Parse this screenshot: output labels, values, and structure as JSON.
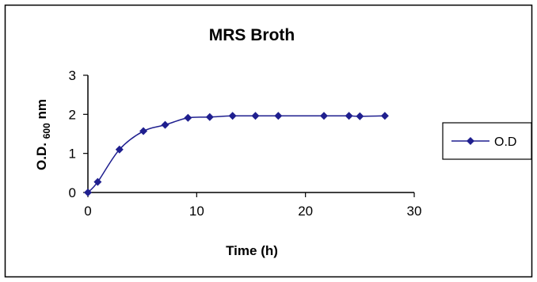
{
  "chart_data": {
    "type": "scatter",
    "title": "MRS Broth",
    "xlabel": "Time (h)",
    "ylabel": {
      "prefix": "O.D.",
      "subscript": "600",
      "suffix": "nm"
    },
    "xlim": [
      0,
      30
    ],
    "ylim": [
      0,
      3
    ],
    "xticks": [
      "0",
      "10",
      "20",
      "30"
    ],
    "yticks": [
      "0",
      "1",
      "2",
      "3"
    ],
    "grid": false,
    "legend_position": "right",
    "series": [
      {
        "name": "O.D",
        "color": "#1f1f8f",
        "marker": "diamond",
        "line": "smooth",
        "x": [
          0,
          0.9,
          2.9,
          5.1,
          7.1,
          9.2,
          11.2,
          13.3,
          15.4,
          17.5,
          21.7,
          24.0,
          25.0,
          27.3
        ],
        "y": [
          0.0,
          0.27,
          1.1,
          1.57,
          1.73,
          1.91,
          1.93,
          1.96,
          1.96,
          1.96,
          1.96,
          1.96,
          1.95,
          1.96
        ]
      }
    ]
  }
}
